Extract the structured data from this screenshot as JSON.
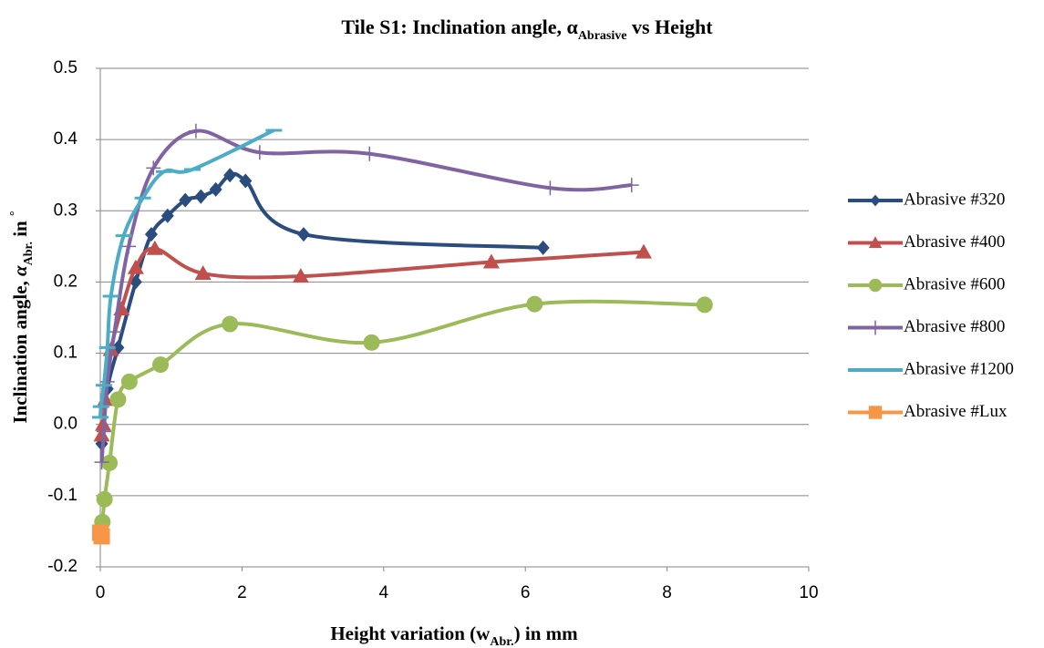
{
  "chart_data": {
    "type": "scatter",
    "title": [
      {
        "text": "Tile S1: Inclination angle, α"
      },
      {
        "text": "Abrasive",
        "sub": true
      },
      {
        "text": " vs Height"
      }
    ],
    "x_label": [
      {
        "text": "Height variation (w"
      },
      {
        "text": "Abr.",
        "sub": true
      },
      {
        "text": ") in mm"
      }
    ],
    "y_label": [
      {
        "text": "Inclination angle, "
      },
      {
        "text": "α",
        "italic": true
      },
      {
        "text": "Abr.",
        "sub": true
      },
      {
        "text": " in "
      },
      {
        "text": "°",
        "sup": true
      }
    ],
    "xlim": [
      0,
      10
    ],
    "xticks": [
      0,
      2,
      4,
      6,
      8,
      10
    ],
    "ylim": [
      -0.2,
      0.5
    ],
    "yticks": [
      -0.2,
      -0.1,
      {
        "value": 0,
        "label": "0.0"
      },
      0.1,
      0.2,
      0.3,
      0.4,
      0.5
    ],
    "grid": true,
    "smooth": true,
    "legend": "right",
    "series": [
      {
        "name": "Abrasive #320",
        "color": "#2b4c7e",
        "marker": "diamond",
        "x": [
          0.02,
          0.1,
          0.25,
          0.5,
          0.72,
          0.95,
          1.2,
          1.42,
          1.63,
          1.83,
          2.05,
          2.87,
          6.25
        ],
        "values": [
          -0.027,
          0.05,
          0.108,
          0.2,
          0.267,
          0.293,
          0.315,
          0.32,
          0.33,
          0.35,
          0.342,
          0.267,
          0.248
        ]
      },
      {
        "name": "Abrasive #400",
        "color": "#c0504d",
        "marker": "triangle",
        "x": [
          0.02,
          0.04,
          0.07,
          0.15,
          0.3,
          0.5,
          0.77,
          1.45,
          2.83,
          5.52,
          7.67
        ],
        "values": [
          -0.015,
          0.0,
          0.035,
          0.105,
          0.162,
          0.22,
          0.247,
          0.212,
          0.208,
          0.228,
          0.242
        ]
      },
      {
        "name": "Abrasive #600",
        "color": "#9bbb59",
        "marker": "circle",
        "x": [
          0.03,
          0.06,
          0.13,
          0.25,
          0.41,
          0.85,
          1.83,
          3.83,
          6.13,
          8.53
        ],
        "values": [
          -0.137,
          -0.105,
          -0.054,
          0.035,
          0.06,
          0.084,
          0.141,
          0.115,
          0.169,
          0.168
        ]
      },
      {
        "name": "Abrasive #800",
        "color": "#8064a2",
        "marker": "plus",
        "x": [
          0.02,
          0.05,
          0.1,
          0.2,
          0.4,
          0.75,
          1.35,
          2.25,
          3.8,
          6.35,
          7.5
        ],
        "values": [
          -0.053,
          -0.01,
          0.06,
          0.13,
          0.25,
          0.36,
          0.412,
          0.382,
          0.38,
          0.332,
          0.336
        ]
      },
      {
        "name": "Abrasive #1200",
        "color": "#4bacc6",
        "marker": "dash",
        "x": [
          0.0,
          0.01,
          0.05,
          0.1,
          0.15,
          0.33,
          0.6,
          0.9,
          1.3,
          2.45
        ],
        "values": [
          0.01,
          0.025,
          0.055,
          0.108,
          0.18,
          0.265,
          0.318,
          0.355,
          0.358,
          0.413
        ]
      },
      {
        "name": "Abrasive #Lux",
        "color": "#f79646",
        "marker": "square",
        "x": [
          0.0,
          0.02
        ],
        "values": [
          -0.152,
          -0.157
        ]
      }
    ]
  }
}
